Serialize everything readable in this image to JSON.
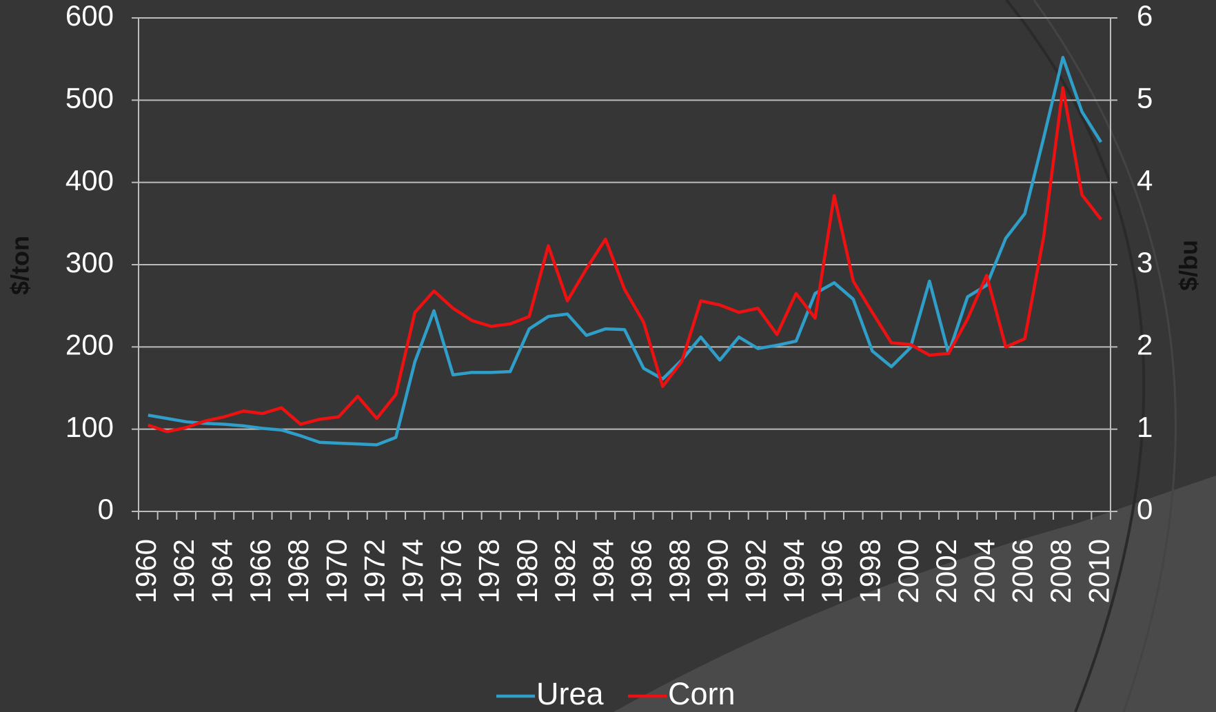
{
  "chart_data": {
    "type": "line",
    "categories": [
      "1960",
      null,
      "1962",
      null,
      "1964",
      null,
      "1966",
      null,
      "1968",
      null,
      "1970",
      null,
      "1972",
      null,
      "1974",
      null,
      "1976",
      null,
      "1978",
      null,
      "1980",
      null,
      "1982",
      null,
      "1984",
      null,
      "1986",
      null,
      "1988",
      null,
      "1990",
      null,
      "1992",
      null,
      "1994",
      null,
      "1996",
      null,
      "1998",
      null,
      "2000",
      null,
      "2002",
      null,
      "2004",
      null,
      "2006",
      null,
      "2008",
      null,
      "2010"
    ],
    "series": [
      {
        "name": "Urea",
        "color": "#2f9fc9",
        "values": [
          117,
          113,
          109,
          107,
          106,
          104,
          101,
          99,
          92,
          84,
          83,
          82,
          81,
          90,
          182,
          244,
          166,
          169,
          169,
          170,
          222,
          237,
          240,
          214,
          222,
          221,
          174,
          161,
          184,
          212,
          184,
          212,
          198,
          202,
          207,
          265,
          278,
          258,
          195,
          176,
          199,
          280,
          192,
          261,
          275,
          332,
          362,
          455,
          552,
          486,
          449
        ]
      },
      {
        "name": "Corn",
        "color": "#ee1111",
        "axis": "y2",
        "values": [
          1.05,
          0.97,
          1.02,
          1.1,
          1.15,
          1.22,
          1.19,
          1.26,
          1.06,
          1.12,
          1.15,
          1.4,
          1.13,
          1.42,
          2.42,
          2.68,
          2.47,
          2.32,
          2.25,
          2.28,
          2.37,
          3.23,
          2.56,
          2.95,
          3.31,
          2.7,
          2.3,
          1.52,
          1.82,
          2.56,
          2.51,
          2.42,
          2.47,
          2.15,
          2.65,
          2.35,
          3.84,
          2.8,
          2.42,
          2.05,
          2.03,
          1.9,
          1.92,
          2.34,
          2.87,
          2.0,
          2.1,
          3.35,
          5.15,
          3.85,
          3.55
        ]
      }
    ],
    "y_label": "$/ton",
    "y2_label": "$/bu",
    "ylim": [
      0,
      600
    ],
    "yticks": [
      0,
      100,
      200,
      300,
      400,
      500,
      600
    ],
    "y2lim": [
      0,
      6
    ],
    "y2ticks": [
      0,
      1,
      2,
      3,
      4,
      5,
      6
    ],
    "grid": true,
    "legend": "bottom"
  }
}
